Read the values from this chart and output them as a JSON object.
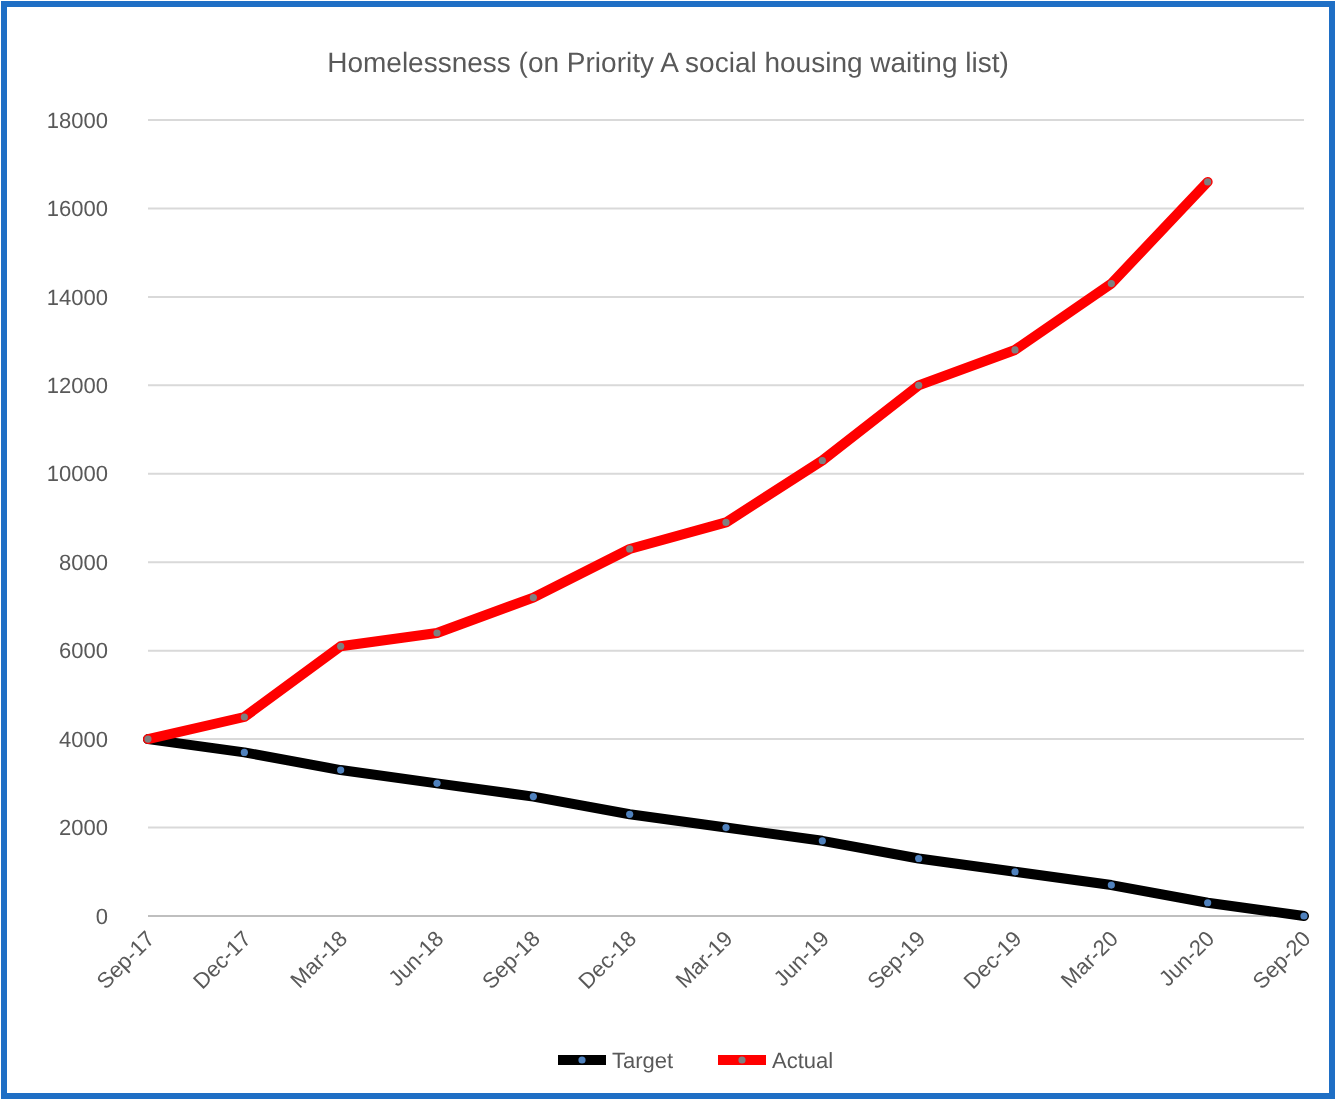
{
  "chart_data": {
    "type": "line",
    "title": "Homelessness (on Priority A social housing waiting list)",
    "categories": [
      "Sep-17",
      "Dec-17",
      "Mar-18",
      "Jun-18",
      "Sep-18",
      "Dec-18",
      "Mar-19",
      "Jun-19",
      "Sep-19",
      "Dec-19",
      "Mar-20",
      "Jun-20",
      "Sep-20"
    ],
    "series": [
      {
        "name": "Target",
        "color": "#000000",
        "values": [
          4000,
          3700,
          3300,
          3000,
          2700,
          2300,
          2000,
          1700,
          1300,
          1000,
          700,
          300,
          0
        ]
      },
      {
        "name": "Actual",
        "color": "#ff0000",
        "values": [
          4000,
          4500,
          6100,
          6400,
          7200,
          8300,
          8900,
          10300,
          12000,
          12800,
          14300,
          16600,
          null
        ]
      }
    ],
    "ylim": [
      0,
      18000
    ],
    "yticks": [
      0,
      2000,
      4000,
      6000,
      8000,
      10000,
      12000,
      14000,
      16000,
      18000
    ],
    "grid": "y",
    "legend": "bottom",
    "marker": "circle",
    "line_style": "solid"
  }
}
